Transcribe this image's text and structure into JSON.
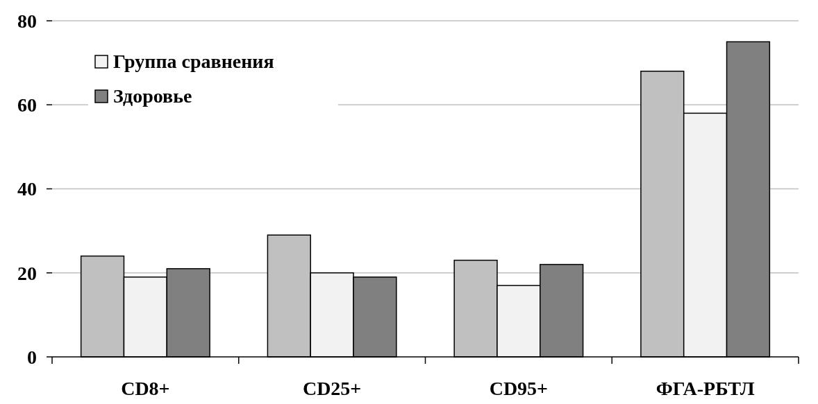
{
  "chart_data": {
    "type": "bar",
    "categories": [
      "CD8+",
      "CD25+",
      "CD95+",
      "ФГА-РБТЛ"
    ],
    "series": [
      {
        "color": "#c0c0c0",
        "values": [
          24,
          29,
          23,
          68
        ]
      },
      {
        "name": "Группа сравнения",
        "color": "#f2f2f2",
        "values": [
          19,
          20,
          17,
          58
        ]
      },
      {
        "name": "Здоровье",
        "color": "#808080",
        "values": [
          21,
          19,
          22,
          75
        ]
      }
    ],
    "ylim": [
      0,
      80
    ],
    "yticks": [
      0,
      20,
      40,
      60,
      80
    ],
    "grid": "y",
    "legend": "top left"
  }
}
